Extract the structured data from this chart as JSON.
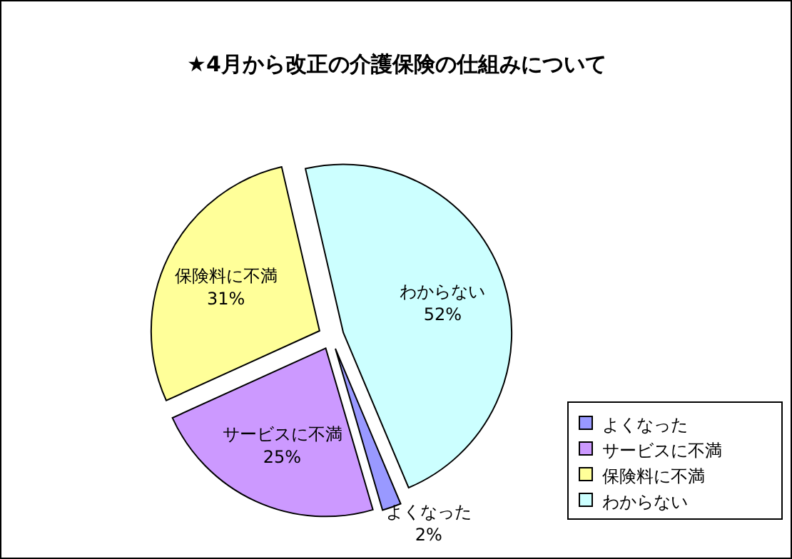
{
  "chart_data": {
    "type": "pie",
    "title": "★4月から改正の介護保険の仕組みについて",
    "categories": [
      "よくなった",
      "サービスに不満",
      "保険料に不満",
      "わからない"
    ],
    "values": [
      2,
      25,
      31,
      52
    ],
    "value_labels": [
      "2%",
      "25%",
      "31%",
      "52%"
    ],
    "colors": [
      "#9999ff",
      "#cc99ff",
      "#ffff99",
      "#ccffff"
    ],
    "data_labels": true,
    "legend": "bottom right"
  }
}
